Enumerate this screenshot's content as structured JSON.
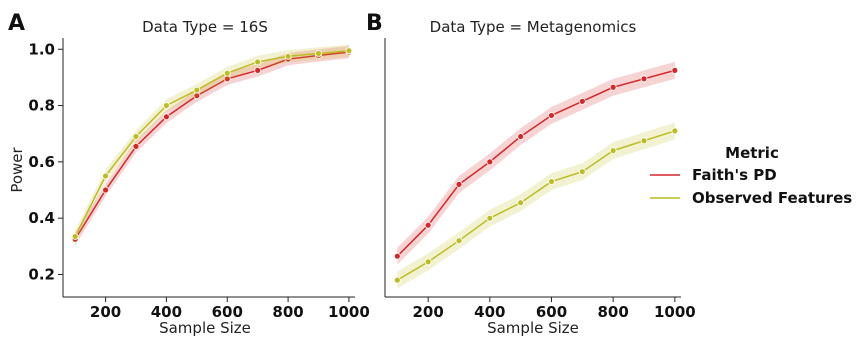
{
  "chart_data": [
    {
      "type": "line",
      "panel_label": "A",
      "title": "Data Type = 16S",
      "xlabel": "Sample Size",
      "ylabel": "Power",
      "xlim": [
        60,
        1020
      ],
      "ylim": [
        0.12,
        1.04
      ],
      "xticks": [
        200,
        400,
        600,
        800,
        1000
      ],
      "yticks": [
        0.2,
        0.4,
        0.6,
        0.8,
        1.0
      ],
      "x": [
        100,
        200,
        300,
        400,
        500,
        600,
        700,
        800,
        900,
        1000
      ],
      "series": [
        {
          "name": "Faith's PD",
          "color": "#d62728",
          "values": [
            0.325,
            0.5,
            0.655,
            0.76,
            0.835,
            0.895,
            0.925,
            0.965,
            0.978,
            0.99
          ],
          "band": 0.022
        },
        {
          "name": "Observed Features",
          "color": "#bcbd22",
          "values": [
            0.335,
            0.55,
            0.69,
            0.8,
            0.855,
            0.915,
            0.955,
            0.975,
            0.985,
            0.995
          ],
          "band": 0.022
        }
      ]
    },
    {
      "type": "line",
      "panel_label": "B",
      "title": "Data Type = Metagenomics",
      "xlabel": "Sample Size",
      "ylabel": "",
      "xlim": [
        60,
        1020
      ],
      "ylim": [
        0.12,
        1.04
      ],
      "xticks": [
        200,
        400,
        600,
        800,
        1000
      ],
      "yticks": [],
      "x": [
        100,
        200,
        300,
        400,
        500,
        600,
        700,
        800,
        900,
        1000
      ],
      "series": [
        {
          "name": "Faith's PD",
          "color": "#d62728",
          "values": [
            0.265,
            0.375,
            0.52,
            0.6,
            0.69,
            0.765,
            0.815,
            0.865,
            0.895,
            0.925
          ],
          "band": 0.03
        },
        {
          "name": "Observed Features",
          "color": "#bcbd22",
          "values": [
            0.18,
            0.245,
            0.32,
            0.4,
            0.455,
            0.53,
            0.565,
            0.64,
            0.675,
            0.71
          ],
          "band": 0.03
        }
      ]
    }
  ],
  "legend": {
    "title": "Metric",
    "position": "right",
    "entries": [
      "Faith's PD",
      "Observed Features"
    ]
  }
}
